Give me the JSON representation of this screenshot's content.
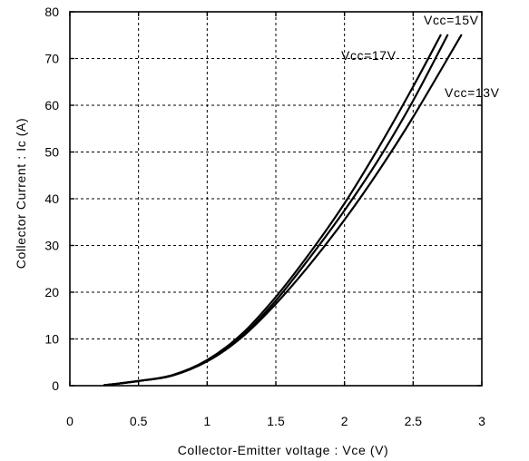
{
  "chart_data": {
    "type": "line",
    "xlabel": "Collector-Emitter voltage : Vce  (V)",
    "ylabel": "Collector Current : Ic  (A)",
    "xlim": [
      0,
      3
    ],
    "ylim": [
      0,
      80
    ],
    "xticks": [
      0,
      0.5,
      1,
      1.5,
      2,
      2.5,
      3
    ],
    "yticks": [
      0,
      10,
      20,
      30,
      40,
      50,
      60,
      70,
      80
    ],
    "xtick_labels": [
      "0",
      "0.5",
      "1",
      "1.5",
      "2",
      "2.5",
      "3"
    ],
    "ytick_labels": [
      "0",
      "10",
      "20",
      "30",
      "40",
      "50",
      "60",
      "70",
      "80"
    ],
    "grid": true,
    "series": [
      {
        "name": "Vcc=17V",
        "x": [
          0.25,
          0.5,
          0.75,
          1.0,
          1.25,
          1.5,
          1.75,
          2.0,
          2.25,
          2.5,
          2.7
        ],
        "y": [
          0.1,
          1.0,
          2.3,
          5.5,
          11.0,
          19.0,
          28.5,
          39.0,
          51.0,
          64.0,
          75.0
        ]
      },
      {
        "name": "Vcc=15V",
        "x": [
          0.25,
          0.5,
          0.75,
          1.0,
          1.25,
          1.5,
          1.75,
          2.0,
          2.25,
          2.5,
          2.75
        ],
        "y": [
          0.1,
          1.0,
          2.2,
          5.3,
          10.5,
          18.2,
          27.5,
          37.5,
          48.5,
          61.0,
          75.0
        ]
      },
      {
        "name": "Vcc=13V",
        "x": [
          0.25,
          0.5,
          0.75,
          1.0,
          1.25,
          1.5,
          1.75,
          2.0,
          2.25,
          2.5,
          2.85
        ],
        "y": [
          0.1,
          1.0,
          2.2,
          5.2,
          10.3,
          17.5,
          26.0,
          35.5,
          46.0,
          57.5,
          75.0
        ]
      }
    ],
    "annotations": [
      {
        "text": "Vcc=15V",
        "series": "Vcc=15V"
      },
      {
        "text": "Vcc=17V",
        "series": "Vcc=17V"
      },
      {
        "text": "Vcc=13V",
        "series": "Vcc=13V"
      }
    ]
  }
}
